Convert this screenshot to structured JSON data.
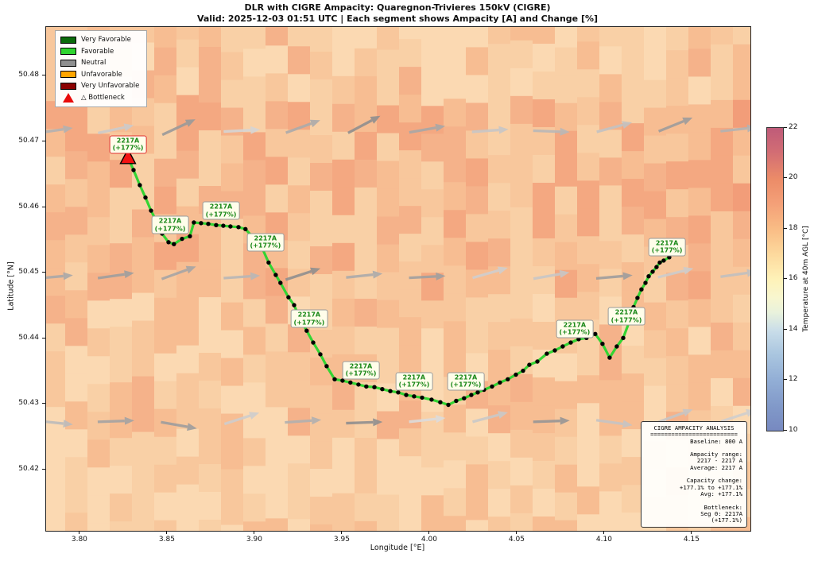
{
  "chart_data": {
    "type": "line",
    "title": "DLR with CIGRE Ampacity: Quaregnon-Trivieres 150kV (CIGRE)",
    "subtitle": "Valid: 2025-12-03 01:51 UTC | Each segment shows Ampacity [A] and Change [%]",
    "xlabel": "Longitude [°E]",
    "ylabel": "Latitude [°N]",
    "xlim": [
      3.7805,
      4.1832
    ],
    "ylim": [
      50.4107,
      50.4875
    ],
    "grid": false,
    "x_ticks": [
      {
        "value": 3.8,
        "label": "3.80"
      },
      {
        "value": 3.85,
        "label": "3.85"
      },
      {
        "value": 3.9,
        "label": "3.90"
      },
      {
        "value": 3.95,
        "label": "3.95"
      },
      {
        "value": 4.0,
        "label": "4.00"
      },
      {
        "value": 4.05,
        "label": "4.05"
      },
      {
        "value": 4.1,
        "label": "4.10"
      },
      {
        "value": 4.15,
        "label": "4.15"
      }
    ],
    "y_ticks": [
      {
        "value": 50.42,
        "label": "50.42"
      },
      {
        "value": 50.43,
        "label": "50.43"
      },
      {
        "value": 50.44,
        "label": "50.44"
      },
      {
        "value": 50.45,
        "label": "50.45"
      },
      {
        "value": 50.46,
        "label": "50.46"
      },
      {
        "value": 50.47,
        "label": "50.47"
      },
      {
        "value": 50.48,
        "label": "50.48"
      }
    ],
    "legend": {
      "items": [
        {
          "label": "Very Favorable",
          "color": "#0b6b0b",
          "marker": "patch"
        },
        {
          "label": "Favorable",
          "color": "#2fd42f",
          "marker": "patch"
        },
        {
          "label": "Neutral",
          "color": "#8f8f8f",
          "marker": "patch"
        },
        {
          "label": "Unfavorable",
          "color": "#ffa500",
          "marker": "patch"
        },
        {
          "label": "Very Unfavorable",
          "color": "#8b0000",
          "marker": "patch"
        },
        {
          "label": "△ Bottleneck",
          "color": "#e80b0b",
          "marker": "triangle"
        }
      ]
    },
    "route": {
      "name": "Quaregnon-Trivieres 150kV",
      "ampacity_a": 2217,
      "change_pct": 177.1,
      "color": "#33d433",
      "marker_color": "#000000",
      "points": [
        [
          3.8273,
          50.4676
        ],
        [
          3.8305,
          50.4657
        ],
        [
          3.8341,
          50.4634
        ],
        [
          3.8373,
          50.4615
        ],
        [
          3.8405,
          50.4595
        ],
        [
          3.8436,
          50.4579
        ],
        [
          3.8468,
          50.456
        ],
        [
          3.8505,
          50.4547
        ],
        [
          3.8536,
          50.4544
        ],
        [
          3.8582,
          50.4552
        ],
        [
          3.8627,
          50.4556
        ],
        [
          3.865,
          50.4577
        ],
        [
          3.8691,
          50.4576
        ],
        [
          3.8732,
          50.4575
        ],
        [
          3.8777,
          50.4573
        ],
        [
          3.8818,
          50.4572
        ],
        [
          3.8859,
          50.4571
        ],
        [
          3.8905,
          50.457
        ],
        [
          3.8945,
          50.4567
        ],
        [
          3.8986,
          50.4555
        ],
        [
          3.9032,
          50.4543
        ],
        [
          3.9077,
          50.4516
        ],
        [
          3.9118,
          50.4497
        ],
        [
          3.9145,
          50.4485
        ],
        [
          3.9191,
          50.4463
        ],
        [
          3.9223,
          50.4451
        ],
        [
          3.925,
          50.4434
        ],
        [
          3.9295,
          50.4412
        ],
        [
          3.9332,
          50.4394
        ],
        [
          3.9373,
          50.4376
        ],
        [
          3.9409,
          50.4358
        ],
        [
          3.9455,
          50.4338
        ],
        [
          3.95,
          50.4336
        ],
        [
          3.9545,
          50.4333
        ],
        [
          3.9591,
          50.433
        ],
        [
          3.9636,
          50.4327
        ],
        [
          3.9682,
          50.4326
        ],
        [
          3.9727,
          50.4323
        ],
        [
          3.9773,
          50.432
        ],
        [
          3.9818,
          50.4318
        ],
        [
          3.9864,
          50.4314
        ],
        [
          3.9909,
          50.4312
        ],
        [
          3.9955,
          50.431
        ],
        [
          4.0009,
          50.4307
        ],
        [
          4.0059,
          50.4303
        ],
        [
          4.0105,
          50.4299
        ],
        [
          4.015,
          50.4305
        ],
        [
          4.0195,
          50.4309
        ],
        [
          4.0236,
          50.4314
        ],
        [
          4.0273,
          50.4318
        ],
        [
          4.0309,
          50.4322
        ],
        [
          4.0355,
          50.4327
        ],
        [
          4.04,
          50.4333
        ],
        [
          4.0445,
          50.4338
        ],
        [
          4.0491,
          50.4345
        ],
        [
          4.0532,
          50.4351
        ],
        [
          4.0568,
          50.436
        ],
        [
          4.0614,
          50.4365
        ],
        [
          4.0668,
          50.4377
        ],
        [
          4.0714,
          50.4382
        ],
        [
          4.0759,
          50.4388
        ],
        [
          4.0805,
          50.4394
        ],
        [
          4.085,
          50.4399
        ],
        [
          4.0895,
          50.4401
        ],
        [
          4.0945,
          50.4407
        ],
        [
          4.0986,
          50.4392
        ],
        [
          4.1027,
          50.4371
        ],
        [
          4.1068,
          50.4388
        ],
        [
          4.1105,
          50.4401
        ],
        [
          4.1141,
          50.4427
        ],
        [
          4.1164,
          50.4448
        ],
        [
          4.1186,
          50.4462
        ],
        [
          4.1209,
          50.4475
        ],
        [
          4.1232,
          50.4485
        ],
        [
          4.125,
          50.4495
        ],
        [
          4.1273,
          50.4502
        ],
        [
          4.1295,
          50.4509
        ],
        [
          4.1314,
          50.4516
        ],
        [
          4.1336,
          50.4519
        ],
        [
          4.1368,
          50.4524
        ]
      ]
    },
    "bottleneck_marker": {
      "lon": 3.8273,
      "lat": 50.4676,
      "color": "#f31212"
    },
    "segment_labels": [
      {
        "lon": 3.8273,
        "lat": 50.4696,
        "text1": "2217A",
        "text2": "(+177%)",
        "bottleneck": true
      },
      {
        "lon": 3.8514,
        "lat": 50.4573,
        "text1": "2217A",
        "text2": "(+177%)",
        "bottleneck": false
      },
      {
        "lon": 3.8805,
        "lat": 50.4595,
        "text1": "2217A",
        "text2": "(+177%)",
        "bottleneck": false
      },
      {
        "lon": 3.9059,
        "lat": 50.4547,
        "text1": "2217A",
        "text2": "(+177%)",
        "bottleneck": false
      },
      {
        "lon": 3.9309,
        "lat": 50.443,
        "text1": "2217A",
        "text2": "(+177%)",
        "bottleneck": false
      },
      {
        "lon": 3.9605,
        "lat": 50.4352,
        "text1": "2217A",
        "text2": "(+177%)",
        "bottleneck": false
      },
      {
        "lon": 3.9909,
        "lat": 50.4335,
        "text1": "2217A",
        "text2": "(+177%)",
        "bottleneck": false
      },
      {
        "lon": 4.0205,
        "lat": 50.4335,
        "text1": "2217A",
        "text2": "(+177%)",
        "bottleneck": false
      },
      {
        "lon": 4.0827,
        "lat": 50.4415,
        "text1": "2217A",
        "text2": "(+177%)",
        "bottleneck": false
      },
      {
        "lon": 4.1123,
        "lat": 50.4434,
        "text1": "2217A",
        "text2": "(+177%)",
        "bottleneck": false
      },
      {
        "lon": 4.1355,
        "lat": 50.454,
        "text1": "2217A",
        "text2": "(+177%)",
        "bottleneck": false
      }
    ],
    "wind_arrows": [
      [
        3.785,
        50.4717,
        8,
        "#b2b2b2"
      ],
      [
        3.82,
        50.4719,
        12,
        "#cbcbcb"
      ],
      [
        3.856,
        50.4722,
        25,
        "#9a9a9a"
      ],
      [
        3.892,
        50.4717,
        3,
        "#d5d5d5"
      ],
      [
        3.927,
        50.4723,
        20,
        "#ababab"
      ],
      [
        3.962,
        50.4726,
        28,
        "#8f8f8f"
      ],
      [
        3.998,
        50.4719,
        10,
        "#a7a7a7"
      ],
      [
        4.034,
        50.4717,
        4,
        "#c7c7c7"
      ],
      [
        4.069,
        50.4716,
        -2,
        "#b8b8b8"
      ],
      [
        4.105,
        50.4722,
        15,
        "#c2c2c2"
      ],
      [
        4.14,
        50.4726,
        22,
        "#9c9c9c"
      ],
      [
        4.176,
        50.4719,
        6,
        "#b3b3b3"
      ],
      [
        3.785,
        50.4494,
        5,
        "#a9a9a9"
      ],
      [
        3.82,
        50.4496,
        8,
        "#9f9f9f"
      ],
      [
        3.856,
        50.45,
        20,
        "#a5a5a5"
      ],
      [
        3.892,
        50.4494,
        4,
        "#b7b7b7"
      ],
      [
        3.927,
        50.4498,
        18,
        "#8f8f8f"
      ],
      [
        3.962,
        50.4496,
        6,
        "#ababab"
      ],
      [
        3.998,
        50.4494,
        3,
        "#a0a0a0"
      ],
      [
        4.034,
        50.45,
        16,
        "#cfcfcf"
      ],
      [
        4.069,
        50.4496,
        10,
        "#c7c7c7"
      ],
      [
        4.105,
        50.4494,
        5,
        "#9d9d9d"
      ],
      [
        4.14,
        50.45,
        14,
        "#cccccc"
      ],
      [
        4.176,
        50.4498,
        8,
        "#c0c0c0"
      ],
      [
        3.785,
        50.4272,
        -6,
        "#bcbcbc"
      ],
      [
        3.82,
        50.4274,
        2,
        "#a3a3a3"
      ],
      [
        3.856,
        50.4268,
        -10,
        "#9e9e9e"
      ],
      [
        3.892,
        50.4278,
        18,
        "#cdcdcd"
      ],
      [
        3.927,
        50.4274,
        4,
        "#b0b0b0"
      ],
      [
        3.962,
        50.4272,
        2,
        "#8f8f8f"
      ],
      [
        3.998,
        50.4276,
        6,
        "#dcdcdc"
      ],
      [
        4.034,
        50.428,
        15,
        "#c9c9c9"
      ],
      [
        4.069,
        50.4274,
        2,
        "#969696"
      ],
      [
        4.105,
        50.4272,
        -8,
        "#c4c4c4"
      ],
      [
        4.14,
        50.4282,
        20,
        "#c6c6c6"
      ],
      [
        4.176,
        50.4282,
        18,
        "#cfcfcf"
      ]
    ],
    "heatmap": {
      "description": "temperature field, approx 18-19.5 C over map area",
      "palette": [
        "#fbd9b2",
        "#f9d0a6",
        "#f8c79c",
        "#f7bd92",
        "#f5b28a",
        "#f4a881",
        "#f29d79",
        "#f09274"
      ]
    },
    "colorbar": {
      "label": "Temperature at 40m AGL [°C]",
      "min": 10,
      "max": 22,
      "ticks": [
        10,
        12,
        14,
        16,
        18,
        20,
        22
      ],
      "stops": [
        [
          0,
          "#bf5b79"
        ],
        [
          8,
          "#d26d74"
        ],
        [
          17,
          "#ec8c68"
        ],
        [
          25,
          "#f4a078"
        ],
        [
          33,
          "#f9bb84"
        ],
        [
          42,
          "#fdda9e"
        ],
        [
          50,
          "#fef2b8"
        ],
        [
          56,
          "#f8f6cf"
        ],
        [
          61,
          "#e9f2dc"
        ],
        [
          67,
          "#c9dde9"
        ],
        [
          75,
          "#a9c5df"
        ],
        [
          83,
          "#93afd6"
        ],
        [
          92,
          "#8199c9"
        ],
        [
          100,
          "#7789c0"
        ]
      ]
    },
    "analysis_box": {
      "lines": [
        {
          "text": "CIGRE AMPACITY ANALYSIS",
          "center": true
        },
        {
          "text": "=========================",
          "center": true
        },
        {
          "text": "Baseline: 800 A",
          "center": false
        },
        {
          "text": "",
          "center": false
        },
        {
          "text": "Ampacity range:",
          "center": false
        },
        {
          "text": "2217 - 2217 A",
          "center": false
        },
        {
          "text": "Average: 2217 A",
          "center": false
        },
        {
          "text": "",
          "center": false
        },
        {
          "text": "Capacity change:",
          "center": false
        },
        {
          "text": "+177.1% to +177.1%",
          "center": false
        },
        {
          "text": "Avg: +177.1%",
          "center": false
        },
        {
          "text": "",
          "center": false
        },
        {
          "text": "Bottleneck:",
          "center": false
        },
        {
          "text": "Seg 0: 2217A",
          "center": false
        },
        {
          "text": "(+177.1%)",
          "center": false
        }
      ]
    }
  }
}
